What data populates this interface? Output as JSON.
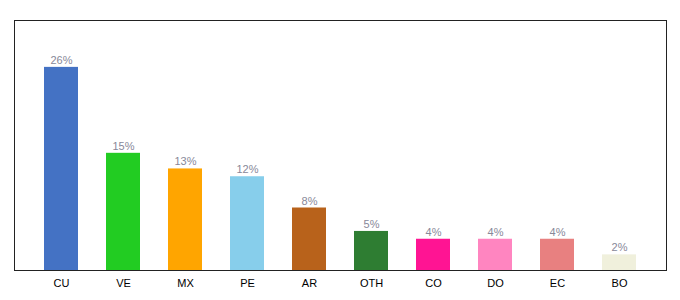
{
  "chart_data": {
    "type": "bar",
    "categories": [
      "CU",
      "VE",
      "MX",
      "PE",
      "AR",
      "OTH",
      "CO",
      "DO",
      "EC",
      "BO"
    ],
    "values": [
      26,
      15,
      13,
      12,
      8,
      5,
      4,
      4,
      4,
      2
    ],
    "value_labels": [
      "26%",
      "15%",
      "13%",
      "12%",
      "8%",
      "5%",
      "4%",
      "4%",
      "4%",
      "2%"
    ],
    "colors": [
      "#4472C4",
      "#22CC22",
      "#FFA500",
      "#87CEEB",
      "#B8621B",
      "#2E7D32",
      "#FF1493",
      "#FF85C0",
      "#E88080",
      "#F0F0DC"
    ],
    "ylim": [
      0,
      32
    ],
    "data_labels": true,
    "tick_labels": "x"
  }
}
